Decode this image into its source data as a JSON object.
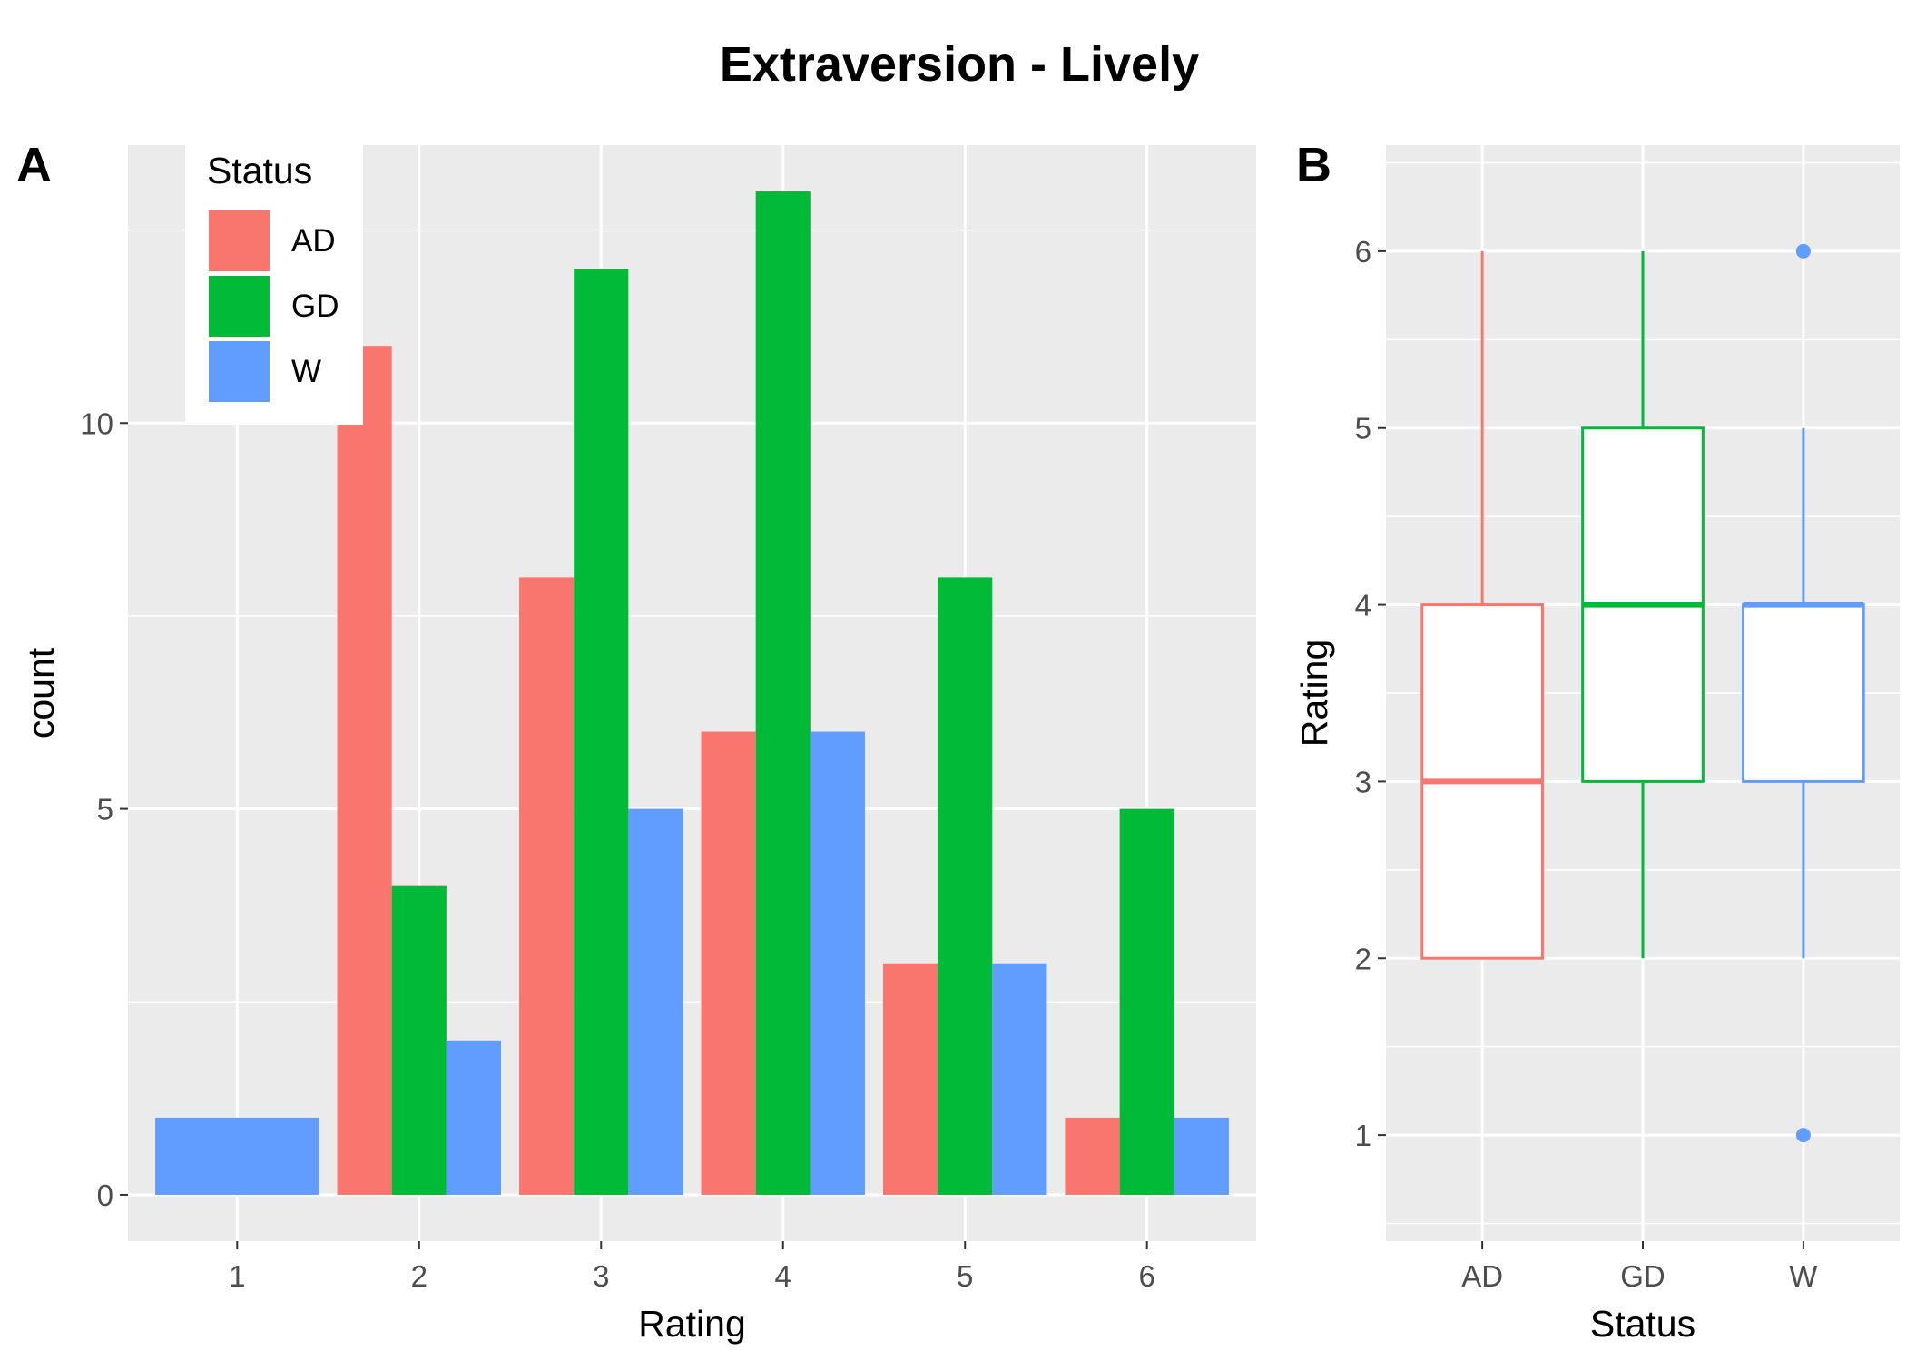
{
  "title": "Extraversion - Lively",
  "panels": {
    "a_tag": "A",
    "b_tag": "B"
  },
  "colors": {
    "AD": "#F8766D",
    "GD": "#00BA38",
    "W": "#619CFF",
    "panel_bg": "#EBEBEB",
    "grid": "#FFFFFF",
    "tick_text": "#4D4D4D"
  },
  "chart_data": [
    {
      "type": "bar",
      "position": "dodge",
      "xlabel": "Rating",
      "ylabel": "count",
      "categories": [
        "1",
        "2",
        "3",
        "4",
        "5",
        "6"
      ],
      "series": [
        {
          "name": "AD",
          "values": [
            0,
            11,
            8,
            6,
            3,
            1
          ]
        },
        {
          "name": "GD",
          "values": [
            0,
            4,
            12,
            13,
            8,
            5
          ]
        },
        {
          "name": "W",
          "values": [
            1,
            2,
            5,
            6,
            3,
            1
          ]
        }
      ],
      "yticks": [
        0,
        5,
        10
      ],
      "ylim": [
        -0.6,
        13.6
      ],
      "grid": true,
      "legend": {
        "title": "Status",
        "placement": "top-left",
        "entries": [
          "AD",
          "GD",
          "W"
        ]
      }
    },
    {
      "type": "boxplot",
      "xlabel": "Status",
      "ylabel": "Rating",
      "categories": [
        "AD",
        "GD",
        "W"
      ],
      "boxes": [
        {
          "name": "AD",
          "min": 2,
          "q1": 2,
          "median": 3,
          "q3": 4,
          "max": 6,
          "outliers": []
        },
        {
          "name": "GD",
          "min": 2,
          "q1": 3,
          "median": 4,
          "q3": 5,
          "max": 6,
          "outliers": []
        },
        {
          "name": "W",
          "min": 2,
          "q1": 3,
          "median": 4,
          "q3": 4,
          "max": 5,
          "outliers": [
            6,
            1
          ]
        }
      ],
      "yticks": [
        1,
        2,
        3,
        4,
        5,
        6
      ],
      "ylim": [
        0.4,
        6.6
      ],
      "grid": true
    }
  ]
}
